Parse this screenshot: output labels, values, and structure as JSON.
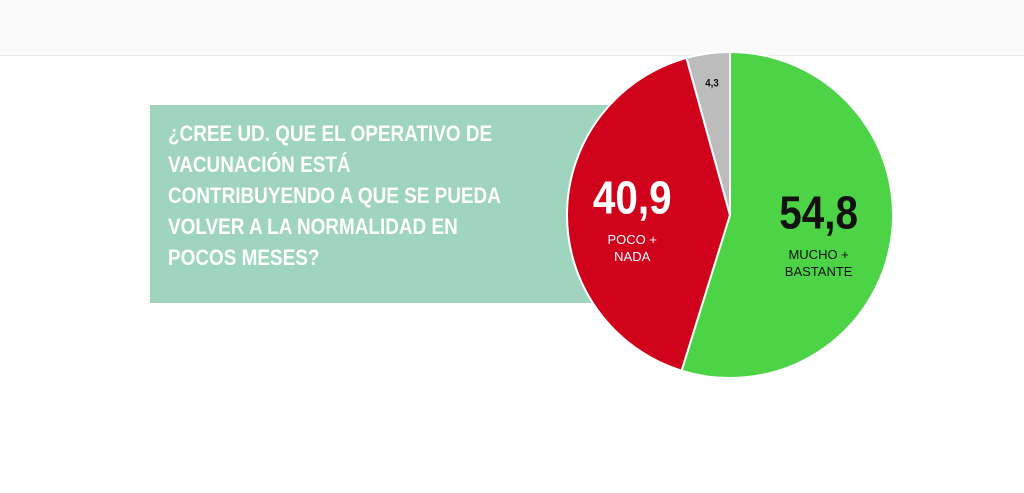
{
  "chart_data": {
    "type": "pie",
    "title": "¿CREE UD. QUE EL OPERATIVO DE VACUNACIÓN ESTÁ CONTRIBUYENDO A QUE SE PUEDA VOLVER A LA NORMALIDAD EN POCOS MESES?",
    "categories": [
      "MUCHO + BASTANTE",
      "POCO + NADA",
      null
    ],
    "values": [
      54.8,
      40.9,
      4.3
    ],
    "value_labels": [
      "54,8",
      "40,9",
      "4,3"
    ],
    "colors": [
      "#4cd346",
      "#d0021b",
      "#bcbcbc"
    ]
  }
}
